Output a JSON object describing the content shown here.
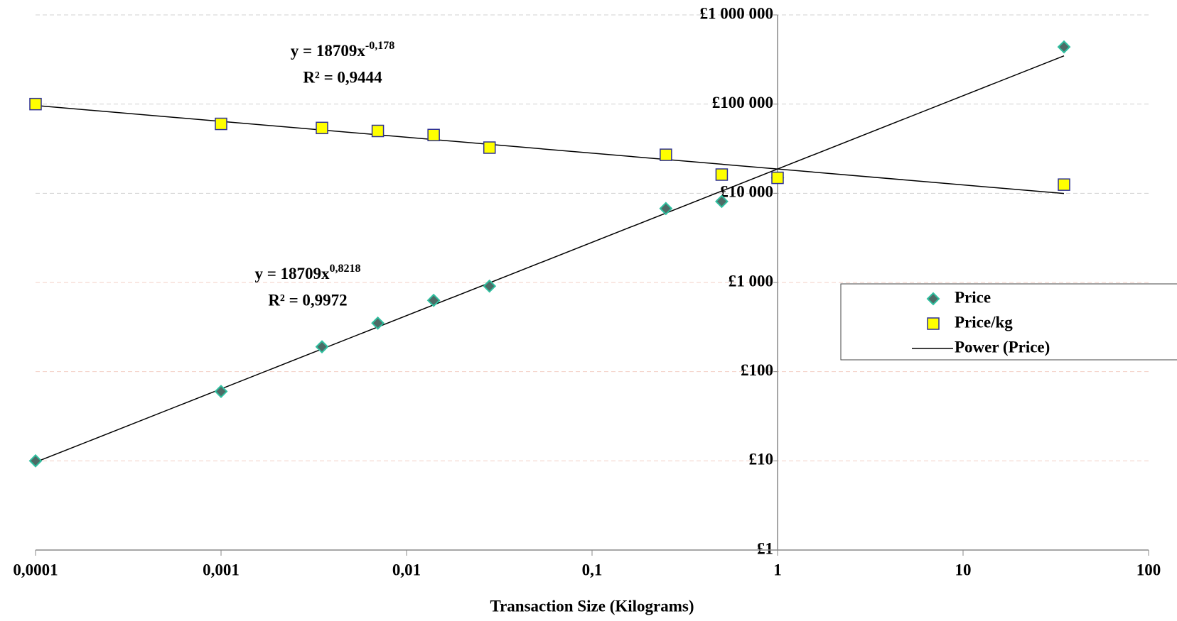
{
  "chart_data": {
    "type": "scatter",
    "x_label": "Transaction Size (Kilograms)",
    "x": [
      0.0001,
      0.001,
      0.0035,
      0.007,
      0.014,
      0.028,
      0.25,
      0.5,
      1,
      35
    ],
    "series": [
      {
        "name": "Price",
        "color": "#4d6b66",
        "edge_color": "#2fbf9f",
        "marker": "diamond",
        "values": [
          10,
          60,
          190,
          350,
          630,
          910,
          6750,
          8100,
          14900,
          437500
        ]
      },
      {
        "name": "Price/kg",
        "color": "#ffff00",
        "edge_color": "#2e3192",
        "marker": "square",
        "values": [
          100000,
          60000,
          54000,
          50000,
          45000,
          32500,
          27000,
          16200,
          14900,
          12500
        ]
      }
    ],
    "trendlines": [
      {
        "series": 0,
        "name": "Power (Price)",
        "coefficient": 18709,
        "exponent": 0.8218,
        "equation": "y = 18709x",
        "exponent_label": "0,8218",
        "r_squared": "R² = 0,9972"
      },
      {
        "series": 1,
        "coefficient": 18709,
        "exponent": -0.178,
        "equation": "y = 18709x",
        "exponent_label": "-0,178",
        "r_squared": "R² = 0,9444"
      }
    ],
    "xscale": "log",
    "yscale": "log",
    "xlim": [
      0.0001,
      100
    ],
    "xticks": [
      {
        "value": 0.0001,
        "label": "0,0001"
      },
      {
        "value": 0.001,
        "label": "0,001"
      },
      {
        "value": 0.01,
        "label": "0,01"
      },
      {
        "value": 0.1,
        "label": "0,1"
      },
      1,
      10,
      100
    ],
    "ylim": [
      1,
      1000000
    ],
    "yticks": [
      {
        "value": 1,
        "label": "£1"
      },
      {
        "value": 10,
        "label": "£10"
      },
      {
        "value": 100,
        "label": "£100"
      },
      {
        "value": 1000,
        "label": "£1 000"
      },
      {
        "value": 10000,
        "label": "£10 000"
      },
      {
        "value": 100000,
        "label": "£100 000"
      },
      {
        "value": 1000000,
        "label": "£1 000 000"
      }
    ],
    "y_axis_crosses_at": 1,
    "grid": true,
    "legend": "right"
  }
}
